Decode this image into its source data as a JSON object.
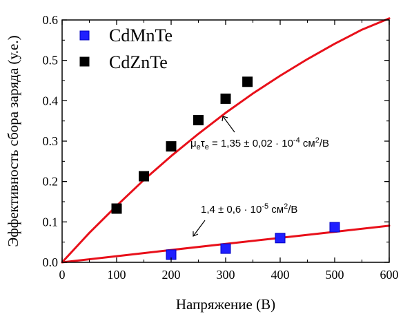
{
  "chart_data": {
    "type": "scatter",
    "xlabel": "Напряжение (В)",
    "ylabel": "Эффективность сбора заряда (у.е.)",
    "xlim": [
      0,
      600
    ],
    "ylim": [
      0,
      0.6
    ],
    "x_ticks": [
      0,
      100,
      200,
      300,
      400,
      500,
      600
    ],
    "y_ticks": [
      0.0,
      0.1,
      0.2,
      0.3,
      0.4,
      0.5,
      0.6
    ],
    "x_tick_labels": [
      "0",
      "100",
      "200",
      "300",
      "400",
      "500",
      "600"
    ],
    "y_tick_labels": [
      "0.0",
      "0.1",
      "0.2",
      "0.3",
      "0.4",
      "0.5",
      "0.6"
    ],
    "grid": false,
    "legend_position": "top-left",
    "series": [
      {
        "name": "CdMnTe",
        "color": "#1f1fff",
        "marker": "square",
        "x": [
          200,
          300,
          400,
          500
        ],
        "y": [
          0.019,
          0.034,
          0.06,
          0.087
        ]
      },
      {
        "name": "CdZnTe",
        "color": "#000000",
        "marker": "square",
        "x": [
          100,
          150,
          200,
          250,
          300,
          340
        ],
        "y": [
          0.133,
          0.213,
          0.287,
          0.352,
          0.405,
          0.447
        ]
      }
    ],
    "fits": [
      {
        "color": "#e8101a",
        "label": "1,4 ± 0,6 · 10",
        "exponent": "-5",
        "unit": " см",
        "unit_power": "2",
        "unit_tail": "/В",
        "x": [
          0,
          100,
          200,
          300,
          400,
          500,
          600
        ],
        "y": [
          0.0,
          0.0152,
          0.0305,
          0.0455,
          0.0605,
          0.0755,
          0.0905
        ]
      },
      {
        "color": "#e8101a",
        "label_mu": "μ",
        "label_e1": "e",
        "label_tau": "τ",
        "label_e2": "e",
        "label_value": " = 1,35 ± 0,02 · 10",
        "exponent": "-4",
        "unit": " см",
        "unit_power": "2",
        "unit_tail": "/В",
        "x": [
          0,
          50,
          100,
          150,
          200,
          250,
          300,
          350,
          400,
          450,
          500,
          550,
          600
        ],
        "y": [
          0.0,
          0.073,
          0.14,
          0.204,
          0.263,
          0.318,
          0.37,
          0.418,
          0.462,
          0.503,
          0.541,
          0.576,
          0.604
        ]
      }
    ]
  }
}
